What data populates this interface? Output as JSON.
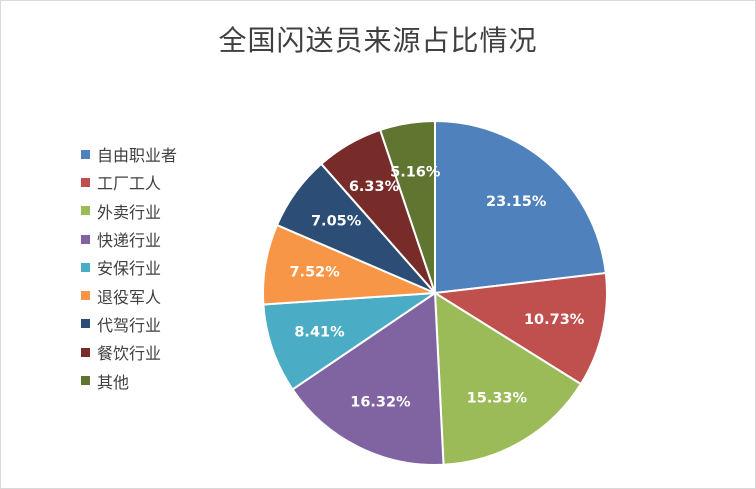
{
  "chart_data": {
    "type": "pie",
    "title": "全国闪送员来源占比情况",
    "legend_position": "left",
    "slices": [
      {
        "name": "自由职业者",
        "value": 23.15,
        "label": "23.15%",
        "color": "#4f81bd"
      },
      {
        "name": "工厂工人",
        "value": 10.73,
        "label": "10.73%",
        "color": "#c0504d"
      },
      {
        "name": "外卖行业",
        "value": 15.33,
        "label": "15.33%",
        "color": "#9bbb59"
      },
      {
        "name": "快递行业",
        "value": 16.32,
        "label": "16.32%",
        "color": "#8064a2"
      },
      {
        "name": "安保行业",
        "value": 8.41,
        "label": "8.41%",
        "color": "#4bacc6"
      },
      {
        "name": "退役军人",
        "value": 7.52,
        "label": "7.52%",
        "color": "#f79646"
      },
      {
        "name": "代驾行业",
        "value": 7.05,
        "label": "7.05%",
        "color": "#2c4d75"
      },
      {
        "name": "餐饮行业",
        "value": 6.33,
        "label": "6.33%",
        "color": "#772c2a"
      },
      {
        "name": "其他",
        "value": 5.16,
        "label": "5.16%",
        "color": "#5f7530"
      }
    ]
  }
}
